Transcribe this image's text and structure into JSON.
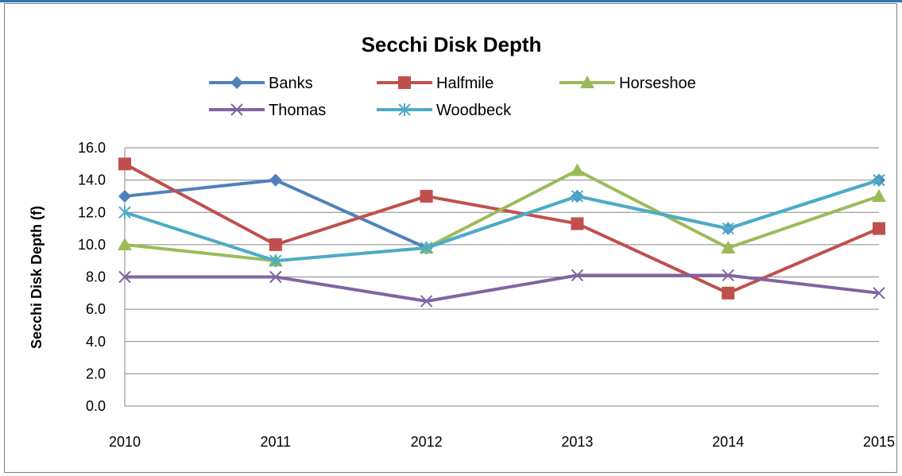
{
  "colors": {
    "Banks": "#4f81bd",
    "Halfmile": "#c0504d",
    "Horseshoe": "#9bbb59",
    "Thomas": "#8064a2",
    "Woodbeck": "#4bacc6",
    "accent": "#2e75b6"
  },
  "chart_data": {
    "type": "line",
    "title": "Secchi Disk Depth",
    "xlabel": "",
    "ylabel": "Secchi Disk Depth (f)",
    "categories": [
      "2010",
      "2011",
      "2012",
      "2013",
      "2014",
      "2015"
    ],
    "ylim": [
      0,
      16
    ],
    "yticks": [
      "0.0",
      "2.0",
      "4.0",
      "6.0",
      "8.0",
      "10.0",
      "12.0",
      "14.0",
      "16.0"
    ],
    "grid": true,
    "legend": "top",
    "series": [
      {
        "name": "Banks",
        "marker": "diamond",
        "values": [
          13.0,
          14.0,
          9.8,
          13.0,
          11.0,
          14.0
        ]
      },
      {
        "name": "Halfmile",
        "marker": "square",
        "values": [
          15.0,
          10.0,
          13.0,
          11.3,
          7.0,
          11.0
        ]
      },
      {
        "name": "Horseshoe",
        "marker": "triangle",
        "values": [
          10.0,
          9.0,
          9.8,
          14.6,
          9.8,
          13.0
        ]
      },
      {
        "name": "Thomas",
        "marker": "x",
        "values": [
          8.0,
          8.0,
          6.5,
          8.1,
          8.1,
          7.0
        ]
      },
      {
        "name": "Woodbeck",
        "marker": "star",
        "values": [
          12.0,
          9.0,
          9.8,
          13.0,
          11.0,
          14.0
        ]
      }
    ]
  }
}
